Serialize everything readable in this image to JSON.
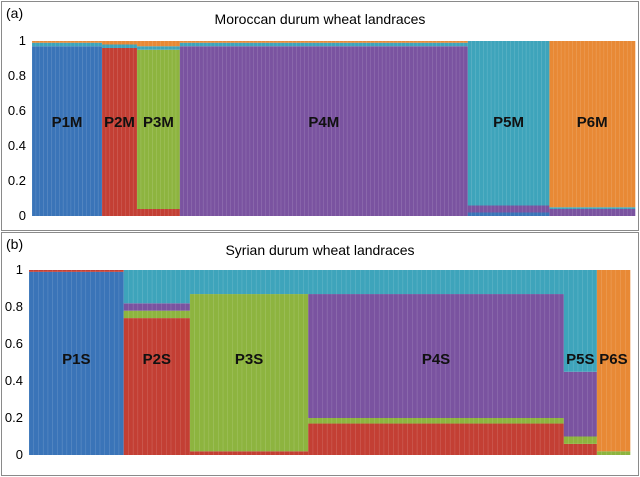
{
  "colors": {
    "K1": "#3a74b8",
    "K2": "#c33f34",
    "K3": "#8db43f",
    "K4": "#7a53a0",
    "K5": "#3ea4bb",
    "K6": "#e88935"
  },
  "chart_data": [
    {
      "type": "bar",
      "stacked": true,
      "panel_letter": "(a)",
      "title": "Moroccan durum wheat landraces",
      "ylim": [
        0,
        1
      ],
      "yticks": [
        "0",
        "0.2",
        "0.4",
        "0.6",
        "0.8",
        "1"
      ],
      "populations": [
        {
          "label": "P1M",
          "bars": 18,
          "composition": {
            "K1": 0.97,
            "K5": 0.02,
            "K6": 0.01
          }
        },
        {
          "label": "P2M",
          "bars": 9,
          "composition": {
            "K2": 0.96,
            "K5": 0.02,
            "K6": 0.02
          }
        },
        {
          "label": "P3M",
          "bars": 11,
          "composition": {
            "K3": 0.91,
            "K2": 0.04,
            "K6": 0.03,
            "K5": 0.02
          }
        },
        {
          "label": "P4M",
          "bars": 74,
          "composition": {
            "K4": 0.97,
            "K5": 0.02,
            "K6": 0.01
          }
        },
        {
          "label": "P5M",
          "bars": 21,
          "composition": {
            "K5": 0.94,
            "K4": 0.04,
            "K1": 0.02
          }
        },
        {
          "label": "P6M",
          "bars": 22,
          "composition": {
            "K6": 0.95,
            "K4": 0.04,
            "K5": 0.01
          }
        }
      ]
    },
    {
      "type": "bar",
      "stacked": true,
      "panel_letter": "(b)",
      "title": "Syrian durum wheat landraces",
      "ylim": [
        0,
        1
      ],
      "yticks": [
        "0",
        "0.2",
        "0.4",
        "0.6",
        "0.8",
        "1"
      ],
      "populations": [
        {
          "label": "P1S",
          "bars": 20,
          "composition": {
            "K1": 0.99,
            "K2": 0.01
          }
        },
        {
          "label": "P2S",
          "bars": 14,
          "composition": {
            "K2": 0.74,
            "K3": 0.04,
            "K4": 0.04,
            "K5": 0.18
          }
        },
        {
          "label": "P3S",
          "bars": 25,
          "composition": {
            "K2": 0.02,
            "K3": 0.85,
            "K5": 0.13
          }
        },
        {
          "label": "P4S",
          "bars": 54,
          "composition": {
            "K2": 0.17,
            "K3": 0.03,
            "K4": 0.67,
            "K5": 0.13
          }
        },
        {
          "label": "P5S",
          "bars": 7,
          "composition": {
            "K2": 0.06,
            "K3": 0.04,
            "K4": 0.35,
            "K5": 0.55
          }
        },
        {
          "label": "P6S",
          "bars": 7,
          "composition": {
            "K6": 0.98,
            "K3": 0.02
          }
        }
      ]
    }
  ]
}
